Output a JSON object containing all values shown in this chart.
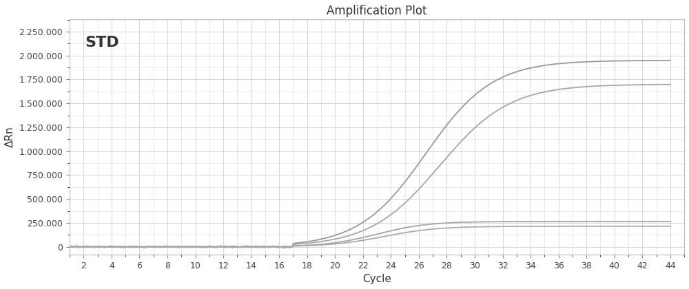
{
  "title": "Amplification Plot",
  "xlabel": "Cycle",
  "ylabel": "ΔRn",
  "annotation": "STD",
  "xlim": [
    1,
    45
  ],
  "ylim": [
    -80000,
    2380000
  ],
  "xticks": [
    2,
    4,
    6,
    8,
    10,
    12,
    14,
    16,
    18,
    20,
    22,
    24,
    26,
    28,
    30,
    32,
    34,
    36,
    38,
    40,
    42,
    44
  ],
  "yticks": [
    0,
    250000,
    500000,
    750000,
    1000000,
    1250000,
    1500000,
    1750000,
    2000000,
    2250000
  ],
  "bg_color": "#f8f8f8",
  "grid_major_color": "#d8d8d8",
  "grid_minor_color_pink": "#e8d8e8",
  "grid_minor_color_green": "#d8e8d8",
  "title_fontsize": 12,
  "label_fontsize": 11,
  "tick_fontsize": 9,
  "annotation_fontsize": 16
}
